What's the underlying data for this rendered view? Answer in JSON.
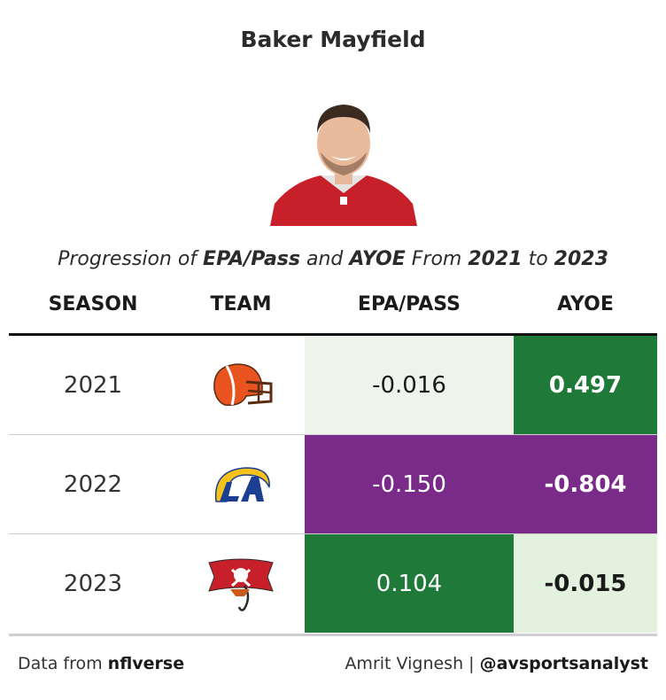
{
  "title": "Baker Mayfield",
  "subtitle": {
    "pre": "Progression of ",
    "metric1": "EPA/Pass",
    "mid": " and ",
    "metric2": "AYOE",
    "from": " From ",
    "start": "2021",
    "to": " to ",
    "end": "2023"
  },
  "headers": {
    "season": "SEASON",
    "team": "TEAM",
    "epa": "EPA/PASS",
    "ayoe": "AYOE"
  },
  "chart_data": {
    "type": "table",
    "columns": [
      "SEASON",
      "TEAM",
      "EPA/PASS",
      "AYOE"
    ],
    "rows": [
      {
        "season": "2021",
        "team_logo": "browns-helmet-icon",
        "epa": "-0.016",
        "ayoe": "0.497",
        "epa_bg": "#eef4ec",
        "epa_color": "#1a1a1a",
        "ayoe_bg": "#1f7a3a",
        "ayoe_color": "#ffffff"
      },
      {
        "season": "2022",
        "team_logo": "rams-logo-icon",
        "epa": "-0.150",
        "ayoe": "-0.804",
        "epa_bg": "#7a2a88",
        "epa_color": "#ffffff",
        "ayoe_bg": "#7a2a88",
        "ayoe_color": "#ffffff"
      },
      {
        "season": "2023",
        "team_logo": "buccaneers-flag-icon",
        "epa": "0.104",
        "ayoe": "-0.015",
        "epa_bg": "#1f7a3a",
        "epa_color": "#ffffff",
        "ayoe_bg": "#e3f1df",
        "ayoe_color": "#1a1a1a"
      }
    ]
  },
  "footer": {
    "left_pre": "Data from ",
    "left_source": "nflverse",
    "right_author": "Amrit Vignesh | ",
    "right_handle": "@avsportsanalyst"
  }
}
